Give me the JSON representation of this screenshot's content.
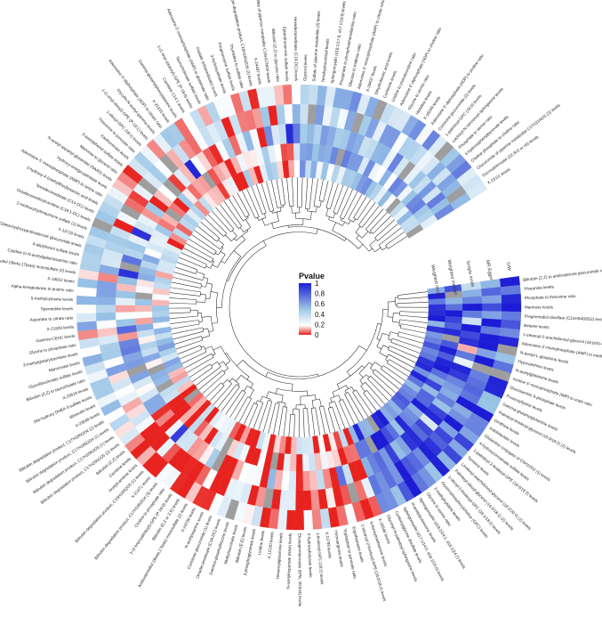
{
  "chart_data": {
    "type": "heatmap",
    "layout": "circular",
    "legend": {
      "title": "Pvalue",
      "ticks": [
        "1",
        "0.8",
        "0.6",
        "0.4",
        "0.2",
        "0"
      ],
      "range": [
        0,
        1
      ],
      "colors": {
        "low": "#e8231f",
        "mid": "#ffffff",
        "high": "#1c1cd6"
      }
    },
    "tracks": [
      "IVW",
      "MR Egger",
      "Simple mode",
      "Weighted median",
      "Weighted mode"
    ],
    "labels": [
      "Bilirubin (Z,Z) to androsterone glucuronide ratio",
      "Threonine levels",
      "Phosphate to threonine ratio",
      "Mannose levels",
      "Pregnenediol disulfate (C21H34O8S2) levels",
      "Betaine levels",
      "1-stearoyl-2-arachidonoyl-glycerol (18:0/20:4) (2) levels",
      "Adenosine 5'-monophosphate (AMP) to methionine ratio",
      "N-acetyl-L-glutamine levels",
      "Hypoxanthine levels",
      "N-acetylglutamine levels",
      "Inosine 5'-monophosphate (IMP) to urate ratio",
      "Glucosamine 6-phosphate levels",
      "Fructosyllysine levels",
      "Gamma-glutamylglutamine levels",
      "Palmitoyl-linoleoyl-glycerol (16:0/18:2) (2) levels",
      "Ornithine levels",
      "Indolelactate levels",
      "Glutamine conjugate of C6H10O2 (1) levels",
      "4-hydroxycinnamate sulfate levels",
      "1-palmitoyl-2-linoleoyl-GPE (16:0/18:2) levels",
      "Tyrosine levels",
      "Linoleoyl-arachidonoyl-glycerol (18:2/20:4) (2) levels",
      "Palmitoyl-oleoyl-glycerol (16:0/18:1) (2) levels",
      "1-oleoyl-2-linoleoyl-GPC (18:1/18:2) levels",
      "Glycerophosphorylcholine (GPC) levels",
      "3-methylcytidine levels",
      "Glycine to serine ratio",
      "Sphingomyelin (d18:2/24:1, d18:1/24:2) levels",
      "N-acetylputrescine levels",
      "Sphingomyelin (d17:1/14:0, d16:1/15:0) levels",
      "Cysteinylglycine disulfide levels",
      "Glycosyl-N-palmitoyl-sphingosine levels",
      "X-16946 levels",
      "N-formylmethionine levels",
      "1-stearoyl-2-linoleoyl-GPE (18:0/18:2) levels",
      "Ergothioneine levels",
      "Tryptophan to pyruvate ratio",
      "Homoarginine levels",
      "X-11795 levels",
      "1-linoleoyl-GPC (18:2) levels",
      "2-hydroxybutyrate levels",
      "Eicosapentaenoate (EPA; 20:5n3) levels",
      "N-acetylaspartate (NAA) levels",
      "Hexanoylglutamine levels",
      "X-12100 levels",
      "Uridine levels",
      "3-phosphoglycerate levels",
      "Bilirubin (E,E) levels",
      "Methylsuccinate levels",
      "Gamma-glutamylleucine levels",
      "Octadecanedioate (C18-DC) levels",
      "Cortolone glucuronide (1) levels",
      "N-acetylalanine levels",
      "X-24736 levels",
      "Androstenediol (3beta,17beta) monosulfate (2) levels",
      "Bilirubin (E,Z or Z,E) levels",
      "1-(1-enyl-palmitoyl)-GPE (P-16:0) levels",
      "Choline to phosphate ratio",
      "Bilirubin degradation product, C17H18N2O4 (3) levels",
      "X-21471 levels",
      "Bilirubin degradation product, C16H18N2O5 (1) levels",
      "Acetylcarnitine levels",
      "Carnitine levels",
      "Bilirubin (Z,Z) levels",
      "Bilirubin degradation product, C17H20N2O5 (2) levels",
      "Bilirubin degradation product, C17H20N2O5 (1) levels",
      "Bilirubin degradation product, C17H18N2O4 (1) levels",
      "Bilirubin degradation product, C17H18N2O4 (2) levels",
      "X-23648 levels",
      "Biliverdin levels",
      "16a-hydroxy DHEA 3-sulfate levels",
      "X-25519 levels",
      "Bilirubin (Z,Z) to taurocholate ratio",
      "Glycolithocholate sulfate levels",
      "Mannonate levels",
      "3-methylglutarylcarnitine levels",
      "Glycine to phosphate ratio",
      "Gamma-CEHC levels",
      "X-21829 levels",
      "Aspartate to citrate ratio",
      "Spermidine levels",
      "5-methylcytosine levels",
      "Alpha-ketoglutarate to proline ratio",
      "X-18922 levels",
      "Androstenediol (3beta,17beta) monosulfate (2) levels",
      "Cytidine to N-acetylgalactosamine ratio",
      "4-allylphenol sulfate levels",
      "11beta-hydroxyandrosterone glucuronide levels",
      "X-13729 levels",
      "2-methoxyhydroquinone sulfate (1) levels",
      "Octadecenedioylcarnitine (C18:1-DC) levels",
      "Tetradecanedioate (C14-DC) levels",
      "2-hydroxy-4-(methylthio)butanoic acid levels",
      "Adenosine 5'-monophosphate (AMP) to serine ratio",
      "Hydroxy-omega-palmitate levels",
      "N-acetyl-aspartyl-glutamate (NAAG) levels",
      "Mannose to glycerol ratio",
      "3-acetylphenol sulfate levels",
      "Xanthurenate levels",
      "Threonine to pyruvate ratio",
      "1-oleoyl-GPC (18:1) levels",
      "1-(1-enyl-oleoyl)-GPE (P-18:1) levels",
      "Glycylin-N-acetyl-gamma-levels",
      "Adenosine 5'-diphosphate (ADP) to citrate ratio",
      "X-21310 levels",
      "Gamma-glutamylphenylalanine levels",
      "Carnitine C14:1 levels",
      "1-(1-enyl-stearoyl)-GPE (P-18:0) levels",
      "Taurocholenate sulfate levels",
      "Adenosine 5'-monophosphate (AMP) to glutamate ratio",
      "Oxalate (ethanedioate) levels",
      "3-hydroxyoleate levels",
      "Pregnenolone sulfate levels",
      "Thymidine to sulfate ratio",
      "Bilirubin degradation product, C16H18N2O5 (2) levels",
      "X-24497 levels",
      "Sulfate of piperine metabolite C16H17NO4 levels",
      "Bilirubin (Z,Z) to glucose ratio",
      "Epiandrosterone sulfate levels",
      "Hexadecanedioate (C16-DC) levels",
      "Glycerol levels",
      "Sulfate of piperine metabolite (2) levels",
      "Tetrahydrocortisol levels",
      "Sphingomyelin (d18:1/17:0, d17:1/18:0) levels",
      "Phosphate to phosphoethanolamine ratio",
      "Glucose to maltose ratio",
      "Adenosine 5'-monophosphate (AMP) to citrate ratio",
      "X-19437 levels",
      "Dihydroferulic acid levels",
      "Cortisone levels",
      "Uridine to pseudouridine ratio",
      "Adenosine 5'-diphosphate (ADP) to choline ratio",
      "Glycine to serine ratio",
      "Histidine levels",
      "X-18249 levels",
      "Adenosine 5'-diphosphate (ADP) to proline ratio",
      "Cortolone glucuronide (2) levels",
      "1-palmitoyl-GPC (16:0) levels",
      "Lactosyl-N-nervonoyl-sphingosine levels",
      "Phosphate to serine ratio",
      "4-hydroxyphenylpyruvate levels",
      "Choline phosphate to choline ratio",
      "Glucuronide of piperine metabolite C17H21NO3 (3) levels",
      "Docosatrienoate (22:3n3 or n6) levels",
      "X-23111 levels"
    ]
  }
}
